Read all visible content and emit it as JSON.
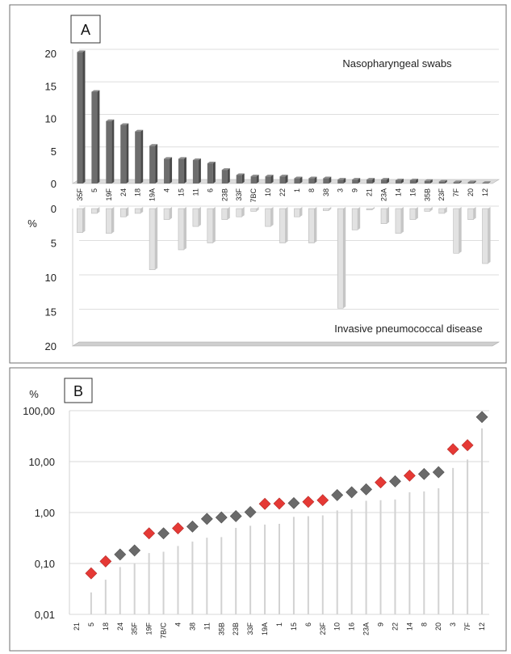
{
  "chart_data": [
    {
      "panel": "A",
      "type": "bar",
      "categories": [
        "35F",
        "5",
        "19F",
        "24",
        "18",
        "19A",
        "4",
        "15",
        "11",
        "6",
        "23B",
        "33F",
        "7BC",
        "10",
        "22",
        "1",
        "8",
        "38",
        "3",
        "9",
        "21",
        "23A",
        "14",
        "16",
        "35B",
        "23F",
        "7F",
        "20",
        "12"
      ],
      "y_unit_label": "%",
      "series": [
        {
          "name": "Nasopharyngeal swabs",
          "values": [
            20.2,
            14.1,
            9.6,
            9.0,
            8.0,
            5.8,
            3.8,
            3.8,
            3.6,
            3.1,
            2.1,
            1.3,
            1.1,
            1.1,
            1.1,
            0.8,
            0.8,
            0.8,
            0.6,
            0.6,
            0.6,
            0.6,
            0.5,
            0.5,
            0.4,
            0.3,
            0.2,
            0.2,
            0.1
          ],
          "ylim": [
            0,
            20
          ]
        },
        {
          "name": "Invasive pneumococcal disease",
          "values": [
            3.5,
            0.7,
            3.6,
            1.2,
            0.7,
            8.9,
            1.6,
            6.0,
            2.6,
            5.0,
            1.6,
            1.2,
            0.4,
            2.6,
            5.0,
            1.2,
            5.0,
            0.3,
            14.5,
            3.1,
            0.2,
            2.2,
            3.6,
            1.6,
            0.4,
            0.7,
            6.5,
            1.6,
            8.0
          ],
          "ylim": [
            0,
            20
          ],
          "direction": "inverted"
        }
      ],
      "yticks": [
        "0",
        "5",
        "10",
        "15",
        "20"
      ],
      "grid": true
    },
    {
      "panel": "B",
      "type": "scatter",
      "y_scale": "log",
      "y_unit_label": "%",
      "ylim": [
        0.01,
        100
      ],
      "yticks": [
        "0,01",
        "0,10",
        "1,00",
        "10,00",
        "100,00"
      ],
      "categories": [
        "21",
        "5",
        "18",
        "24",
        "35F",
        "19F",
        "7B/C",
        "4",
        "38",
        "11",
        "35B",
        "23B",
        "33F",
        "19A",
        "1",
        "15",
        "6",
        "23F",
        "10",
        "16",
        "23A",
        "9",
        "22",
        "14",
        "8",
        "20",
        "3",
        "7F",
        "12"
      ],
      "values": [
        null,
        0.064,
        0.11,
        0.15,
        0.18,
        0.39,
        0.39,
        0.49,
        0.53,
        0.75,
        0.8,
        0.85,
        1.02,
        1.48,
        1.5,
        1.53,
        1.62,
        1.75,
        2.2,
        2.5,
        2.85,
        3.9,
        4.1,
        5.3,
        5.7,
        6.2,
        17.5,
        21,
        75
      ],
      "marker_colors": [
        null,
        "red",
        "red",
        "gray",
        "gray",
        "red",
        "gray",
        "red",
        "gray",
        "gray",
        "gray",
        "gray",
        "gray",
        "red",
        "red",
        "gray",
        "red",
        "red",
        "gray",
        "gray",
        "gray",
        "red",
        "gray",
        "red",
        "gray",
        "gray",
        "red",
        "red",
        "gray"
      ],
      "stems": [
        0.01,
        0.027,
        0.048,
        0.085,
        0.1,
        0.16,
        0.17,
        0.22,
        0.27,
        0.32,
        0.33,
        0.5,
        0.55,
        0.58,
        0.6,
        0.82,
        0.85,
        0.88,
        1.1,
        1.15,
        1.7,
        1.75,
        1.8,
        2.5,
        2.6,
        3.0,
        7.5,
        11,
        45
      ],
      "colors": {
        "red": "#e53935",
        "gray": "#6a6a6a"
      },
      "grid": true
    }
  ],
  "labels": {
    "panel_a": "A",
    "panel_b": "B",
    "percent_a": "%",
    "percent_b": "%",
    "annotation_top": "Nasopharyngeal swabs",
    "annotation_bottom": "Invasive pneumococcal disease"
  }
}
